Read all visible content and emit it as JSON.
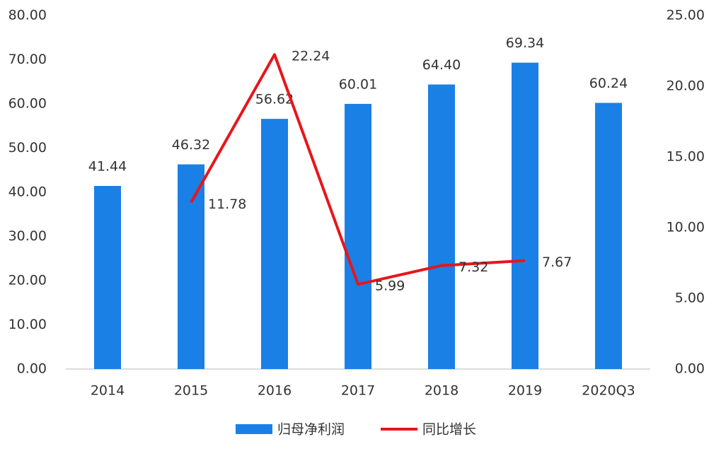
{
  "chart_data": {
    "type": "bar",
    "categories": [
      "2014",
      "2015",
      "2016",
      "2017",
      "2018",
      "2019",
      "2020Q3"
    ],
    "series": [
      {
        "name": "归母净利润",
        "type": "bar",
        "color": "#1a80e6",
        "values": [
          41.44,
          46.32,
          56.62,
          60.01,
          64.4,
          69.34,
          60.24
        ],
        "value_labels": [
          "41.44",
          "46.32",
          "56.62",
          "60.01",
          "64.40",
          "69.34",
          "60.24"
        ]
      },
      {
        "name": "同比增长",
        "type": "line",
        "axis": "y2",
        "color": "#e8151b",
        "values": [
          null,
          11.78,
          22.24,
          5.99,
          7.32,
          7.67,
          null
        ]
      }
    ],
    "ylim": [
      0,
      80
    ],
    "yticks": [
      {
        "value": 0,
        "label": "0.00"
      },
      {
        "value": 10,
        "label": "10.00"
      },
      {
        "value": 20,
        "label": "20.00"
      },
      {
        "value": 30,
        "label": "30.00"
      },
      {
        "value": 40,
        "label": "40.00"
      },
      {
        "value": 50,
        "label": "50.00"
      },
      {
        "value": 60,
        "label": "60.00"
      },
      {
        "value": 70,
        "label": "70.00"
      },
      {
        "value": 80,
        "label": "80.00"
      }
    ],
    "y2lim": [
      0,
      25
    ],
    "y2ticks": [
      {
        "value": 0,
        "label": "0.00"
      },
      {
        "value": 5,
        "label": "5.00"
      },
      {
        "value": 10,
        "label": "10.00"
      },
      {
        "value": 15,
        "label": "15.00"
      },
      {
        "value": 20,
        "label": "20.00"
      },
      {
        "value": 25,
        "label": "25.00"
      }
    ],
    "legend": "bottom"
  }
}
